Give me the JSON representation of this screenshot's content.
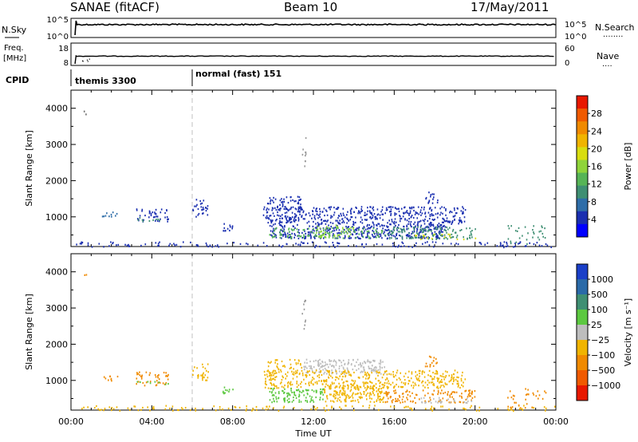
{
  "header": {
    "station": "SANAE (fitACF)",
    "beam": "Beam 10",
    "date": "17/May/2011"
  },
  "colors": {
    "axes": "#000000",
    "trace": "#000000",
    "dashed_marker": "#c0c0c0"
  },
  "strips": {
    "nsky": {
      "label": "N.Sky",
      "ticks_left": [
        "10^5",
        "10^0"
      ],
      "right_label": "N.Search",
      "ticks_right": [
        "10^5",
        "10^0"
      ]
    },
    "freq": {
      "label_lines": [
        "Freq.",
        "[MHz]"
      ],
      "ticks_left": [
        "18",
        "8"
      ],
      "right_label": "Nave",
      "ticks_right": [
        "60",
        "0"
      ]
    },
    "cpid": {
      "label": "CPID",
      "segments": [
        {
          "text": "themis 3300"
        },
        {
          "text": "normal (fast) 151"
        }
      ]
    }
  },
  "chart_data": [
    {
      "type": "heatmap",
      "name": "power",
      "ylabel": "Slant Range [km]",
      "xlabel": "",
      "xlim": [
        0,
        24
      ],
      "ylim": [
        180,
        4500
      ],
      "yticks": [
        1000,
        2000,
        3000,
        4000
      ],
      "colorbar": {
        "label": "Power [dB]",
        "ticks": [
          "4",
          "8",
          "12",
          "16",
          "20",
          "24",
          "28"
        ],
        "colors": [
          "#0000ff",
          "#1a2fb0",
          "#2e6da8",
          "#3f8f73",
          "#56b456",
          "#8fd43a",
          "#d8dd10",
          "#f0b400",
          "#f08a00",
          "#f05a00",
          "#e81800"
        ]
      },
      "regions": [
        {
          "t0": 0.2,
          "t1": 24.0,
          "r0": 180,
          "r1": 330,
          "color": "#1a2fb0",
          "density": 0.22
        },
        {
          "t0": 0.6,
          "t1": 0.75,
          "r0": 3850,
          "r1": 3950,
          "color": "#6d6d6d",
          "density": 0.6
        },
        {
          "t0": 1.5,
          "t1": 2.3,
          "r0": 1000,
          "r1": 1150,
          "color": "#2e6da8",
          "density": 0.45
        },
        {
          "t0": 3.2,
          "t1": 4.8,
          "r0": 880,
          "r1": 1250,
          "color": "#1a2fb0",
          "density": 0.35
        },
        {
          "t0": 3.2,
          "t1": 4.8,
          "r0": 900,
          "r1": 1000,
          "color": "#3f8f73",
          "density": 0.3
        },
        {
          "t0": 6.0,
          "t1": 6.8,
          "r0": 1000,
          "r1": 1500,
          "color": "#1a2fb0",
          "density": 0.35
        },
        {
          "t0": 7.5,
          "t1": 8.0,
          "r0": 600,
          "r1": 850,
          "color": "#1a2fb0",
          "density": 0.5
        },
        {
          "t0": 9.7,
          "t1": 11.4,
          "r0": 1200,
          "r1": 1600,
          "color": "#1a2fb0",
          "density": 0.4
        },
        {
          "t0": 9.5,
          "t1": 19.5,
          "r0": 800,
          "r1": 1300,
          "color": "#1a2fb0",
          "density": 0.5
        },
        {
          "t0": 9.8,
          "t1": 18.5,
          "r0": 420,
          "r1": 800,
          "color": "#1a2fb0",
          "density": 0.6
        },
        {
          "t0": 9.8,
          "t1": 15.5,
          "r0": 430,
          "r1": 720,
          "color": "#56b456",
          "density": 0.35
        },
        {
          "t0": 12.0,
          "t1": 14.0,
          "r0": 450,
          "r1": 800,
          "color": "#8fd43a",
          "density": 0.3
        },
        {
          "t0": 15.5,
          "t1": 20.0,
          "r0": 400,
          "r1": 750,
          "color": "#3f8f73",
          "density": 0.4
        },
        {
          "t0": 17.0,
          "t1": 20.0,
          "r0": 400,
          "r1": 550,
          "color": "#d8dd10",
          "density": 0.2
        },
        {
          "t0": 11.4,
          "t1": 11.6,
          "r0": 2400,
          "r1": 3250,
          "color": "#9a9a9a",
          "density": 0.3
        },
        {
          "t0": 17.5,
          "t1": 18.2,
          "r0": 1400,
          "r1": 1700,
          "color": "#1a2fb0",
          "density": 0.4
        },
        {
          "t0": 21.5,
          "t1": 23.5,
          "r0": 250,
          "r1": 800,
          "color": "#3f8f73",
          "density": 0.15
        }
      ]
    },
    {
      "type": "heatmap",
      "name": "velocity",
      "ylabel": "Slant Range [km]",
      "xlabel": "Time UT",
      "xlim": [
        0,
        24
      ],
      "ylim": [
        180,
        4500
      ],
      "yticks": [
        1000,
        2000,
        3000,
        4000
      ],
      "xticks": [
        "00:00",
        "04:00",
        "08:00",
        "12:00",
        "16:00",
        "20:00",
        "00:00"
      ],
      "colorbar": {
        "label": "Velocity [m s⁻¹]",
        "ticks": [
          "1000",
          "500",
          "100",
          "25",
          "−25",
          "−100",
          "−500",
          "−1000"
        ],
        "colors": [
          "#1a3fc8",
          "#2a6aa8",
          "#3f8f73",
          "#5cc840",
          "#bdbdbd",
          "#f0b400",
          "#f08a00",
          "#f05a00",
          "#e81800"
        ]
      },
      "regions": [
        {
          "t0": 0.2,
          "t1": 24.0,
          "r0": 180,
          "r1": 330,
          "color": "#f0b400",
          "density": 0.2
        },
        {
          "t0": 0.6,
          "t1": 0.75,
          "r0": 3850,
          "r1": 3950,
          "color": "#f08a00",
          "density": 0.6
        },
        {
          "t0": 1.5,
          "t1": 2.3,
          "r0": 1000,
          "r1": 1150,
          "color": "#f08a00",
          "density": 0.4
        },
        {
          "t0": 3.2,
          "t1": 4.8,
          "r0": 880,
          "r1": 1250,
          "color": "#f08a00",
          "density": 0.35
        },
        {
          "t0": 3.2,
          "t1": 4.8,
          "r0": 900,
          "r1": 1000,
          "color": "#5cc840",
          "density": 0.25
        },
        {
          "t0": 6.0,
          "t1": 6.8,
          "r0": 1000,
          "r1": 1500,
          "color": "#f0b400",
          "density": 0.35
        },
        {
          "t0": 7.5,
          "t1": 8.0,
          "r0": 600,
          "r1": 850,
          "color": "#5cc840",
          "density": 0.45
        },
        {
          "t0": 9.7,
          "t1": 11.4,
          "r0": 1200,
          "r1": 1600,
          "color": "#f0b400",
          "density": 0.35
        },
        {
          "t0": 11.5,
          "t1": 15.5,
          "r0": 1200,
          "r1": 1600,
          "color": "#bdbdbd",
          "density": 0.55
        },
        {
          "t0": 9.5,
          "t1": 19.5,
          "r0": 800,
          "r1": 1300,
          "color": "#f0b400",
          "density": 0.45
        },
        {
          "t0": 9.8,
          "t1": 12.5,
          "r0": 420,
          "r1": 800,
          "color": "#5cc840",
          "density": 0.55
        },
        {
          "t0": 12.5,
          "t1": 15.5,
          "r0": 420,
          "r1": 900,
          "color": "#f0b400",
          "density": 0.6
        },
        {
          "t0": 15.5,
          "t1": 20.0,
          "r0": 400,
          "r1": 750,
          "color": "#f08a00",
          "density": 0.4
        },
        {
          "t0": 17.0,
          "t1": 20.0,
          "r0": 400,
          "r1": 550,
          "color": "#bdbdbd",
          "density": 0.3
        },
        {
          "t0": 11.4,
          "t1": 11.6,
          "r0": 2400,
          "r1": 3250,
          "color": "#9a9a9a",
          "density": 0.3
        },
        {
          "t0": 17.5,
          "t1": 18.2,
          "r0": 1400,
          "r1": 1700,
          "color": "#f08a00",
          "density": 0.4
        },
        {
          "t0": 21.5,
          "t1": 23.5,
          "r0": 250,
          "r1": 800,
          "color": "#f08a00",
          "density": 0.15
        }
      ]
    }
  ]
}
